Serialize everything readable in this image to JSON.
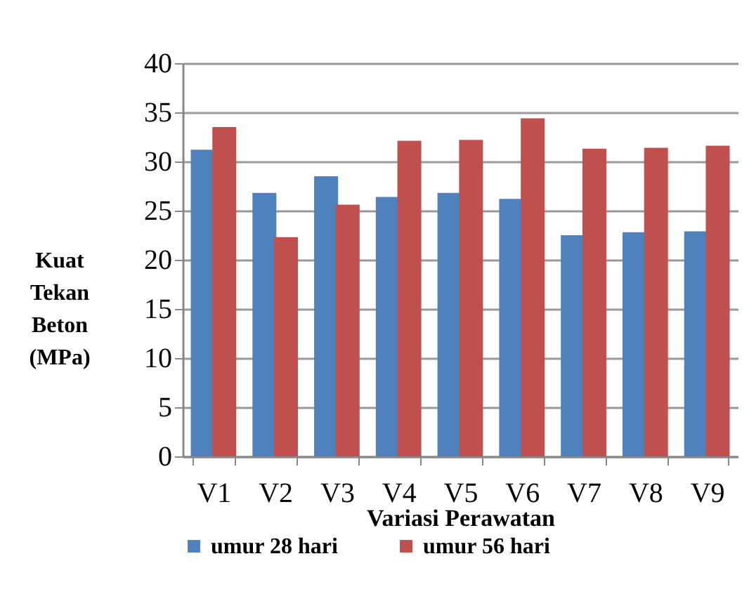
{
  "chart_data": {
    "type": "bar",
    "xlabel": "Variasi Perawatan",
    "ylabel": "Kuat Tekan Beton (MPa)",
    "categories": [
      "V1",
      "V2",
      "V3",
      "V4",
      "V5",
      "V6",
      "V7",
      "V8",
      "V9"
    ],
    "series": [
      {
        "name": "umur 28 hari",
        "color": "#4f81bd",
        "values": [
          31.2,
          26.8,
          28.5,
          26.4,
          26.8,
          26.2,
          22.5,
          22.8,
          22.9
        ]
      },
      {
        "name": "umur 56 hari",
        "color": "#c0504d",
        "values": [
          33.5,
          22.3,
          25.6,
          32.1,
          32.2,
          34.4,
          31.3,
          31.4,
          31.6
        ]
      }
    ],
    "ylim": [
      0,
      40
    ],
    "yticks": [
      0,
      5,
      10,
      15,
      20,
      25,
      30,
      35,
      40
    ],
    "grid": "y",
    "legend": "bottom"
  }
}
